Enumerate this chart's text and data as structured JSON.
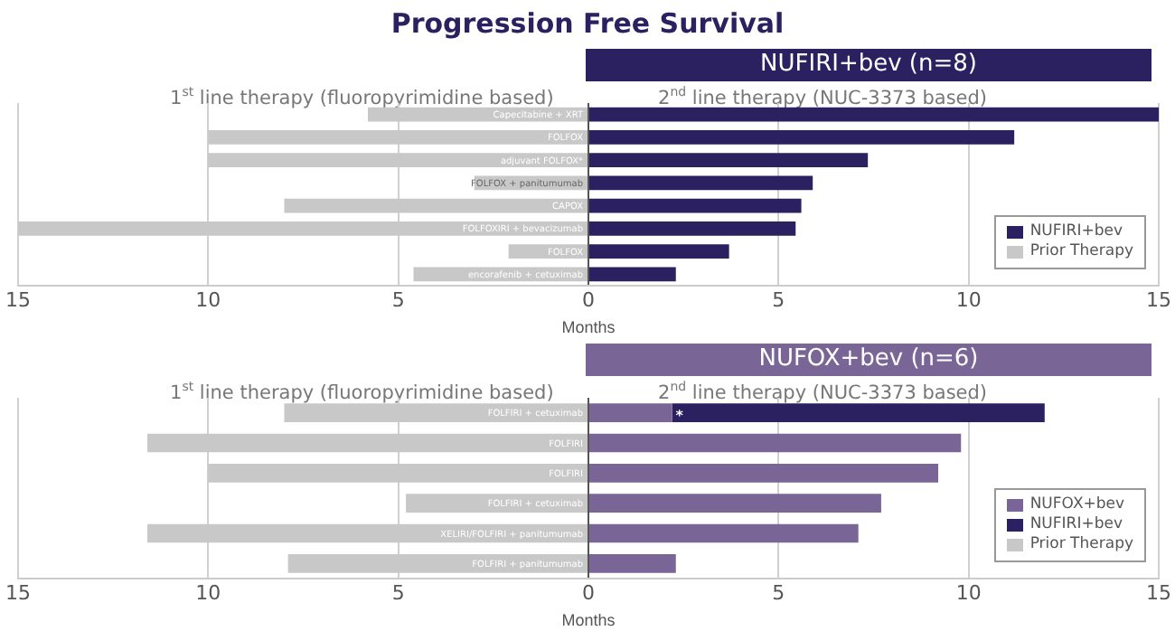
{
  "chart_data": [
    {
      "type": "bar",
      "title": "Progression Free Survival",
      "subtitle": "NUFIRI+bev (n=8)",
      "orientation": "horizontal",
      "stacked": true,
      "xlabel": "Months",
      "annotations": [
        "1$^{st}$ line therapy (fluoropyrimidine based)",
        "2$^{nd}$ line therapy (NUC-3373 based)"
      ],
      "categories": [
        "Capecitabine + XRT",
        "FOLFOX",
        "adjuvant FOLFOX*",
        "FOLFOX + panitumumab",
        "CAPOX",
        "FOLFOXIRI + bevacizumab",
        "FOLFOX",
        "encorafenib + cetuximab"
      ],
      "series": [
        {
          "name": "NUFIRI+bev",
          "color": "#2b2161",
          "values": [
            15,
            11.2,
            7.35,
            5.9,
            5.6,
            5.45,
            3.7,
            2.3
          ]
        },
        {
          "name": "Prior Therapy",
          "color": "#c8c8c8",
          "values": [
            -5.8,
            -10,
            -10,
            -3,
            -8,
            -15,
            -2.1,
            -4.6
          ]
        }
      ],
      "xlim": [
        -15,
        15
      ],
      "xticks": [
        {
          "value": -15,
          "label": "15"
        },
        {
          "value": -10,
          "label": "10"
        },
        {
          "value": -5,
          "label": "5"
        },
        0,
        5,
        10,
        15
      ],
      "grid": "x",
      "legend": "bottom right",
      "tick_labels": "x"
    },
    {
      "type": "bar",
      "subtitle": "NUFOX+bev (n=6)",
      "orientation": "horizontal",
      "stacked": true,
      "xlabel": "Months",
      "annotations": [
        "1$^{st}$ line therapy (fluoropyrimidine based)",
        "2$^{nd}$ line therapy (NUC-3373 based)",
        {
          "text": "*",
          "x": 2.2
        }
      ],
      "categories": [
        "FOLFIRI + cetuximab",
        "FOLFIRI",
        "FOLFIRI",
        "FOLFIRI + cetuximab",
        "XELIRI/FOLFIRI + panitumumab",
        "FOLFIRI + panitumumab"
      ],
      "series": [
        {
          "name": "NUFOX+bev",
          "color": "#7a6597",
          "values": [
            2.2,
            9.8,
            9.2,
            7.7,
            7.1,
            2.3
          ]
        },
        {
          "name": "NUFIRI+bev",
          "color": "#2b2161",
          "values": [
            9.8,
            null,
            null,
            null,
            null,
            null
          ]
        },
        {
          "name": "Prior Therapy",
          "color": "#c8c8c8",
          "values": [
            -8,
            -11.6,
            -10,
            -4.8,
            -11.6,
            -7.9
          ]
        }
      ],
      "xlim": [
        -15,
        15
      ],
      "xticks": [
        {
          "value": -15,
          "label": "15"
        },
        {
          "value": -10,
          "label": "10"
        },
        {
          "value": -5,
          "label": "5"
        },
        0,
        5,
        10,
        15
      ],
      "grid": "x",
      "legend": "bottom right",
      "tick_labels": "x"
    }
  ]
}
